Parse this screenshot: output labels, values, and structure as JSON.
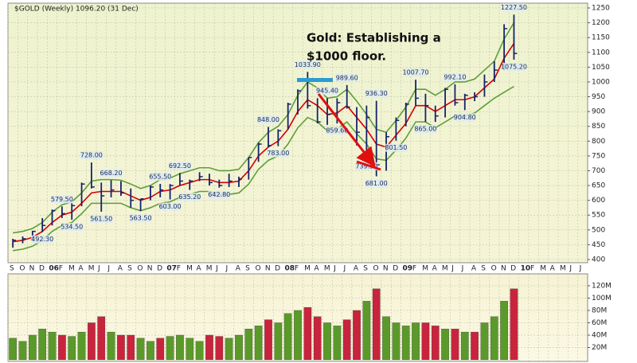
{
  "chart_data": [
    {
      "type": "ohlc",
      "title": "$GOLD (Weekly) 1096.20 (31 Dec)",
      "annotation": [
        "Gold: Establishing a",
        "$1000 floor."
      ],
      "categories": [
        "S",
        "O",
        "N",
        "D",
        "06",
        "F",
        "M",
        "A",
        "M",
        "J",
        "J",
        "A",
        "S",
        "O",
        "N",
        "D",
        "07",
        "F",
        "M",
        "A",
        "M",
        "J",
        "J",
        "A",
        "S",
        "O",
        "N",
        "D",
        "08",
        "F",
        "M",
        "A",
        "M",
        "J",
        "J",
        "A",
        "S",
        "O",
        "N",
        "D",
        "09",
        "F",
        "M",
        "A",
        "M",
        "J",
        "J",
        "A",
        "S",
        "O",
        "N",
        "D",
        "10",
        "F",
        "M",
        "A",
        "M",
        "J",
        "J"
      ],
      "high": [
        470,
        478,
        497,
        540,
        569,
        579.5,
        590,
        660,
        728,
        660,
        668.2,
        665,
        640,
        605,
        650,
        655.5,
        655,
        692.5,
        670,
        695,
        690,
        670,
        690,
        680,
        745,
        795,
        848,
        840,
        930,
        975,
        1033.9,
        945,
        945.4,
        945,
        989.6,
        915,
        920,
        936.3,
        830,
        880,
        930,
        1007.7,
        960,
        920,
        980,
        992.1,
        960,
        965,
        1025,
        1070,
        1195,
        1227.5,
        null,
        null,
        null,
        null,
        null,
        null,
        null
      ],
      "low": [
        440,
        455,
        462,
        492.3,
        515,
        540,
        534.5,
        580,
        640,
        561.5,
        610,
        615,
        575,
        563.5,
        600,
        610,
        603,
        650,
        635.2,
        665,
        650,
        642.8,
        645,
        645,
        670,
        730,
        780,
        783,
        840,
        890,
        910,
        860,
        855,
        859.6,
        910,
        785,
        739.5,
        681,
        700,
        801.5,
        850,
        920,
        865,
        865,
        880,
        920,
        904.8,
        935,
        950,
        1000,
        1040,
        1075.2,
        null,
        null,
        null,
        null,
        null,
        null,
        null
      ],
      "close": [
        465,
        470,
        495,
        515,
        565,
        555,
        582,
        655,
        645,
        615,
        635,
        625,
        600,
        605,
        645,
        635,
        650,
        665,
        665,
        680,
        660,
        650,
        665,
        672,
        745,
        790,
        785,
        835,
        925,
        970,
        920,
        865,
        890,
        930,
        915,
        830,
        880,
        720,
        815,
        870,
        925,
        945,
        920,
        885,
        975,
        930,
        955,
        950,
        1000,
        1040,
        1180,
        1096.2,
        null,
        null,
        null,
        null,
        null,
        null,
        null
      ],
      "high_labels": [
        null,
        null,
        null,
        null,
        null,
        "579.50",
        null,
        null,
        "728.00",
        null,
        "668.20",
        null,
        null,
        null,
        null,
        "655.50",
        null,
        "692.50",
        null,
        null,
        null,
        null,
        null,
        null,
        null,
        null,
        "848.00",
        null,
        null,
        null,
        "1033.90",
        null,
        "945.40",
        null,
        "989.60",
        null,
        null,
        "936.30",
        null,
        null,
        null,
        "1007.70",
        null,
        null,
        null,
        "992.10",
        null,
        null,
        null,
        null,
        null,
        "1227.50",
        null,
        null,
        null,
        null,
        null,
        null,
        null
      ],
      "low_labels": [
        null,
        null,
        null,
        "492.30",
        null,
        null,
        "534.50",
        null,
        null,
        "561.50",
        null,
        null,
        null,
        "563.50",
        null,
        null,
        "603.00",
        null,
        "635.20",
        null,
        null,
        "642.80",
        null,
        null,
        null,
        null,
        null,
        "783.00",
        null,
        null,
        null,
        null,
        null,
        "859.60",
        null,
        null,
        "739.50",
        "681.00",
        null,
        "801.50",
        null,
        null,
        "865.00",
        null,
        null,
        null,
        "904.80",
        null,
        null,
        null,
        null,
        "1075.20",
        null,
        null,
        null,
        null,
        null,
        null,
        null
      ],
      "color": "#14246a",
      "overlays": [
        {
          "color": "#5f9e3a",
          "values": [
            490,
            495,
            505,
            525,
            560,
            585,
            595,
            625,
            665,
            670,
            670,
            668,
            655,
            640,
            650,
            670,
            675,
            690,
            700,
            710,
            710,
            700,
            700,
            705,
            745,
            795,
            830,
            850,
            890,
            955,
            1000,
            980,
            945,
            950,
            975,
            935,
            890,
            840,
            830,
            870,
            915,
            975,
            975,
            955,
            975,
            1000,
            1000,
            1010,
            1040,
            1070,
            1145,
            1200,
            null,
            null,
            null,
            null,
            null,
            null,
            null
          ]
        },
        {
          "color": "#5f9e3a",
          "values": [
            430,
            435,
            445,
            465,
            495,
            515,
            525,
            555,
            590,
            590,
            590,
            590,
            575,
            565,
            575,
            590,
            595,
            610,
            620,
            630,
            630,
            620,
            620,
            625,
            655,
            705,
            735,
            750,
            790,
            845,
            880,
            865,
            835,
            840,
            865,
            825,
            790,
            740,
            735,
            770,
            810,
            865,
            865,
            845,
            865,
            885,
            885,
            895,
            920,
            945,
            965,
            985,
            null,
            null,
            null,
            null,
            null,
            null,
            null
          ]
        },
        {
          "color": "#d40000",
          "values": [
            460,
            465,
            475,
            495,
            525,
            550,
            560,
            590,
            625,
            630,
            630,
            630,
            615,
            600,
            610,
            630,
            635,
            650,
            660,
            670,
            670,
            660,
            660,
            665,
            700,
            750,
            780,
            800,
            840,
            900,
            940,
            920,
            890,
            895,
            920,
            880,
            840,
            790,
            780,
            820,
            860,
            920,
            920,
            900,
            920,
            940,
            940,
            950,
            980,
            1010,
            1080,
            1130,
            null,
            null,
            null,
            null,
            null,
            null,
            null
          ]
        }
      ],
      "ylim": [
        400,
        1250
      ],
      "yticks": [
        400,
        450,
        500,
        550,
        600,
        650,
        700,
        750,
        800,
        850,
        900,
        950,
        1000,
        1050,
        1100,
        1150,
        1200,
        1250
      ],
      "grid": true
    },
    {
      "type": "bar",
      "values": [
        35,
        30,
        40,
        50,
        45,
        40,
        38,
        45,
        60,
        70,
        45,
        40,
        40,
        35,
        30,
        35,
        38,
        40,
        35,
        30,
        40,
        38,
        35,
        40,
        50,
        55,
        65,
        60,
        75,
        80,
        85,
        70,
        60,
        55,
        65,
        80,
        95,
        115,
        70,
        60,
        55,
        60,
        60,
        55,
        50,
        50,
        45,
        45,
        60,
        70,
        95,
        115,
        null,
        null,
        null,
        null,
        null,
        null,
        null
      ],
      "up_color": "#5a9a2a",
      "down_color": "#c8243e",
      "ylim": [
        0,
        138
      ],
      "yticks": [
        {
          "value": 20,
          "label": "20M"
        },
        {
          "value": 40,
          "label": "40M"
        },
        {
          "value": 60,
          "label": "60M"
        },
        {
          "value": 80,
          "label": "80M"
        },
        {
          "value": 100,
          "label": "100M"
        },
        {
          "value": 120,
          "label": "120M"
        }
      ],
      "grid": true
    }
  ]
}
